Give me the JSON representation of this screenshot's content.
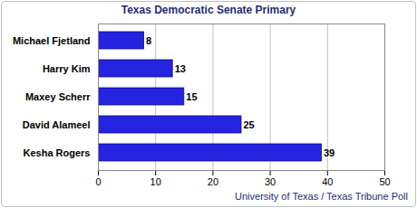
{
  "chart_data": {
    "type": "bar",
    "title": "Texas Democratic Senate Primary",
    "caption": "University of Texas / Texas Tribune Poll",
    "orientation": "horizontal",
    "categories": [
      "Michael Fjetland",
      "Harry Kim",
      "Maxey Scherr",
      "David Alameel",
      "Kesha Rogers"
    ],
    "values": [
      8,
      13,
      15,
      25,
      39
    ],
    "color": "#2323e0",
    "xlim": [
      0,
      50
    ],
    "xticks": [
      0,
      10,
      20,
      30,
      40,
      50
    ],
    "grid": true,
    "data_labels": true
  }
}
